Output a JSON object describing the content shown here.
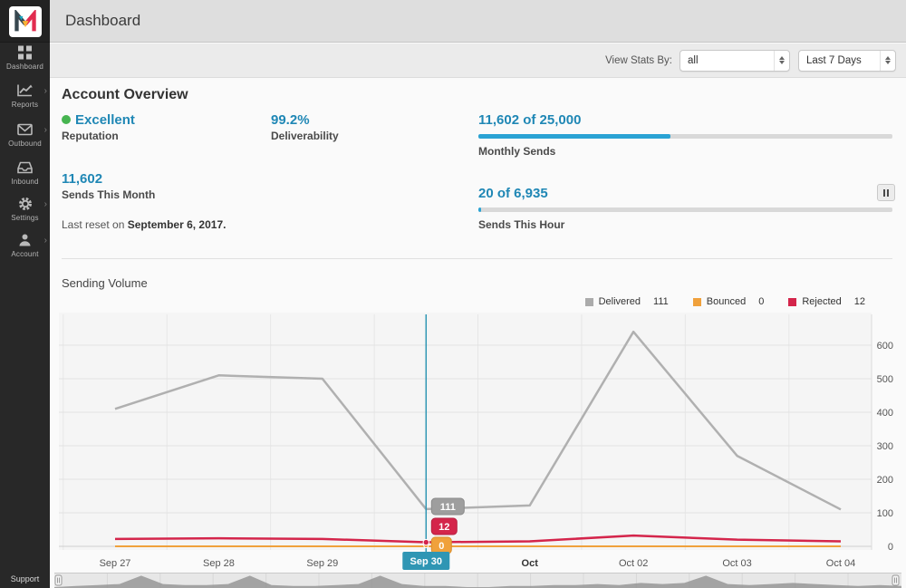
{
  "app": {
    "name": "Mailgun",
    "support_label": "Support"
  },
  "header": {
    "title": "Dashboard"
  },
  "sidebar": {
    "items": [
      {
        "label": "Dashboard",
        "icon": "grid-icon",
        "chevron": false
      },
      {
        "label": "Reports",
        "icon": "chart-icon",
        "chevron": true
      },
      {
        "label": "Outbound",
        "icon": "envelope-icon",
        "chevron": true
      },
      {
        "label": "Inbound",
        "icon": "inbox-icon",
        "chevron": false
      },
      {
        "label": "Settings",
        "icon": "gear-icon",
        "chevron": true
      },
      {
        "label": "Account",
        "icon": "person-icon",
        "chevron": true
      }
    ]
  },
  "toolbar": {
    "view_stats_label": "View Stats By:",
    "filter_value": "all",
    "range_value": "Last 7 Days"
  },
  "overview": {
    "title": "Account Overview",
    "reputation": {
      "value": "Excellent",
      "label": "Reputation",
      "status_color": "#46b450"
    },
    "deliverability": {
      "value": "99.2%",
      "label": "Deliverability"
    },
    "monthly_sends": {
      "value": "11,602 of 25,000",
      "label": "Monthly Sends",
      "percent": 46.4
    },
    "sends_this_month": {
      "value": "11,602",
      "label": "Sends This Month"
    },
    "sends_this_hour": {
      "value": "20 of 6,935",
      "label": "Sends This Hour",
      "percent": 0.7
    },
    "last_reset_prefix": "Last reset on ",
    "last_reset_date": "September 6, 2017."
  },
  "chart": {
    "title": "Sending Volume",
    "legend": [
      {
        "label": "Delivered",
        "value": "111",
        "color": "#ababab"
      },
      {
        "label": "Bounced",
        "value": "0",
        "color": "#f0a13c"
      },
      {
        "label": "Rejected",
        "value": "12",
        "color": "#d4254b"
      }
    ],
    "accent_blue": "#1f87b5",
    "crosshair_color": "#2f96b4"
  },
  "chart_data": {
    "type": "line",
    "categories": [
      "Sep 27",
      "Sep 28",
      "Sep 29",
      "Sep 30",
      "Oct",
      "Oct 02",
      "Oct 03",
      "Oct 04"
    ],
    "bold_category_index": 4,
    "selected_index": 3,
    "selected_label": "Sep 30",
    "series": [
      {
        "name": "Delivered",
        "color": "#b0b0b0",
        "values": [
          410,
          510,
          500,
          111,
          122,
          640,
          270,
          110
        ]
      },
      {
        "name": "Bounced",
        "color": "#f0a13c",
        "values": [
          0,
          0,
          0,
          0,
          0,
          0,
          0,
          0
        ]
      },
      {
        "name": "Rejected",
        "color": "#d4254b",
        "values": [
          22,
          24,
          22,
          12,
          15,
          32,
          20,
          15
        ]
      }
    ],
    "tooltip": {
      "delivered": "111",
      "rejected": "12",
      "bounced": "0"
    },
    "ylim": [
      0,
      650
    ],
    "yticks": [
      0,
      100,
      200,
      300,
      400,
      500,
      600
    ],
    "grid": true,
    "legend_position": "top-right",
    "navigator_values": [
      0,
      1,
      2,
      3,
      11,
      3,
      2,
      2,
      3,
      11,
      2,
      1,
      1,
      2,
      3,
      11,
      3,
      1,
      1,
      0,
      0,
      1,
      1,
      2,
      2,
      3,
      2,
      4,
      3,
      4,
      11,
      3,
      2,
      3,
      4,
      3,
      2,
      1,
      2,
      1
    ]
  }
}
